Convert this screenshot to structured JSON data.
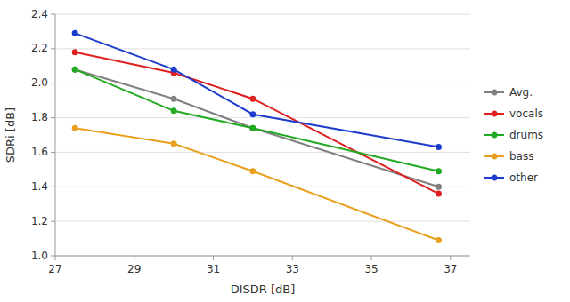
{
  "chart_data": {
    "type": "line",
    "x_label": "DISDR [dB]",
    "y_label": "SDRi [dB]",
    "x": [
      27.5,
      30.0,
      32.0,
      36.7
    ],
    "series": [
      {
        "name": "Avg.",
        "color": "#808080",
        "values": [
          2.08,
          1.91,
          1.74,
          1.4
        ]
      },
      {
        "name": "vocals",
        "color": "#e02020",
        "values": [
          2.18,
          2.06,
          1.91,
          1.36
        ]
      },
      {
        "name": "drums",
        "color": "#22aa22",
        "values": [
          2.08,
          1.84,
          1.74,
          1.49
        ]
      },
      {
        "name": "bass",
        "color": "#e8a020",
        "values": [
          1.74,
          1.65,
          1.49,
          1.09
        ]
      },
      {
        "name": "other",
        "color": "#1e3ccc",
        "values": [
          2.29,
          2.08,
          1.82,
          1.63
        ]
      }
    ],
    "xlim": [
      27,
      37.5
    ],
    "ylim": [
      1.0,
      2.4
    ],
    "xticks": [
      27,
      29,
      31,
      33,
      35,
      37
    ],
    "yticks": [
      {
        "value": 1.0,
        "label": "1.0"
      },
      1.2,
      1.4,
      1.6,
      1.8,
      {
        "value": 2.0,
        "label": "2.0"
      },
      2.2,
      2.4
    ],
    "grid": true,
    "legend": "right",
    "marker": "circle"
  }
}
